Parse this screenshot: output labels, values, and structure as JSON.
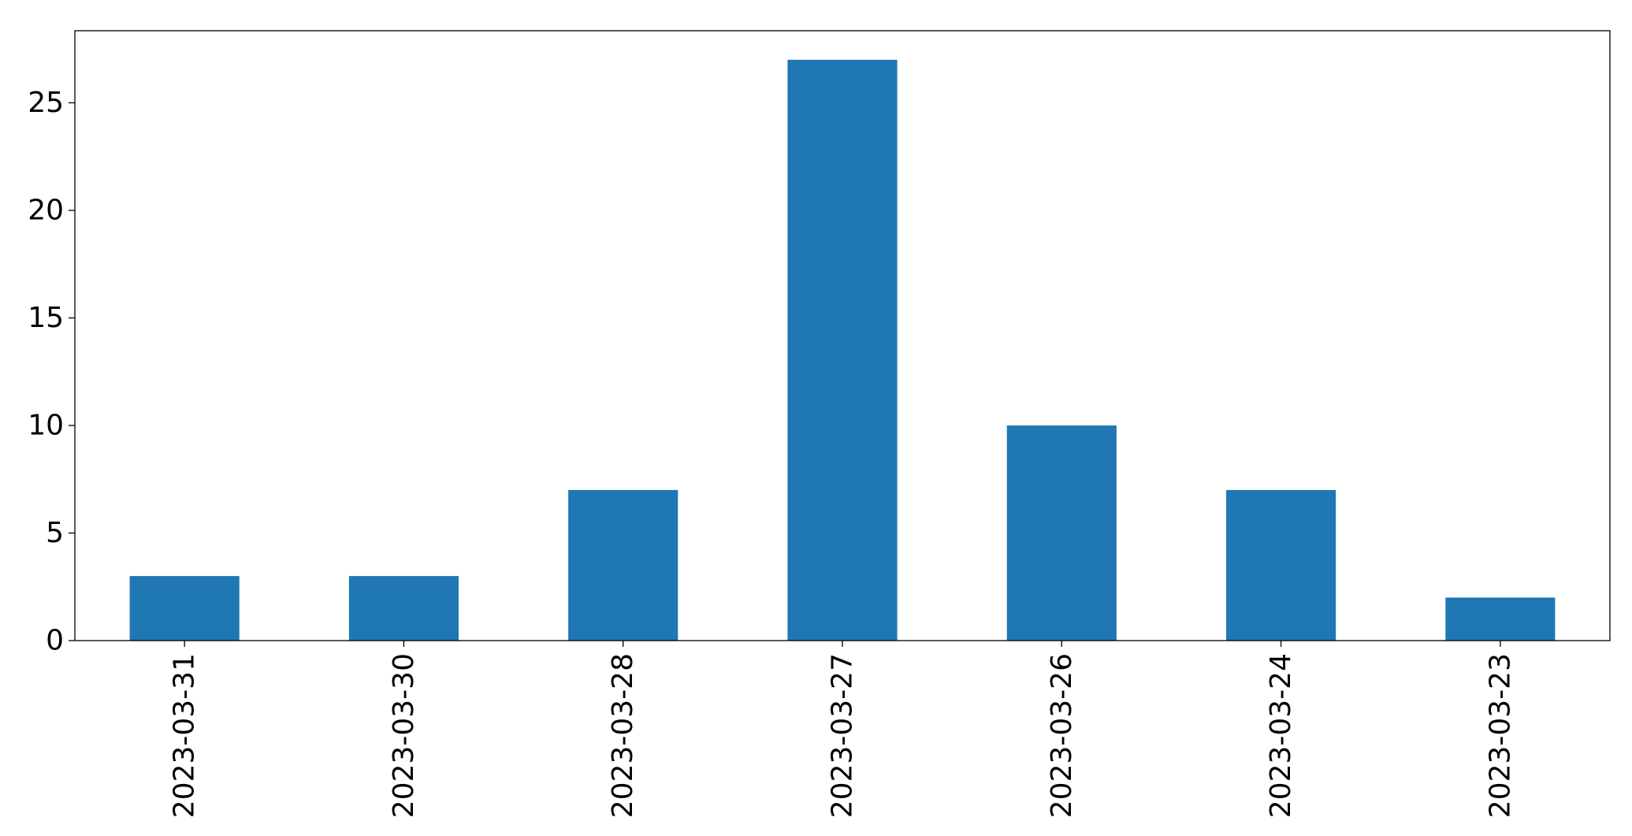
{
  "chart_data": {
    "type": "bar",
    "title": "",
    "xlabel": "",
    "ylabel": "",
    "categories": [
      "2023-03-31",
      "2023-03-30",
      "2023-03-28",
      "2023-03-27",
      "2023-03-26",
      "2023-03-24",
      "2023-03-23"
    ],
    "values": [
      3,
      3,
      7,
      27,
      10,
      7,
      2
    ],
    "ylim": [
      0,
      28.35
    ],
    "yticks": [
      0,
      5,
      10,
      15,
      20,
      25
    ],
    "ytick_labels": [
      "0",
      "5",
      "10",
      "15",
      "20",
      "25"
    ],
    "bar_color": "#1f77b4",
    "grid": false,
    "legend": "none",
    "x_tick_rotation": "vertical"
  }
}
